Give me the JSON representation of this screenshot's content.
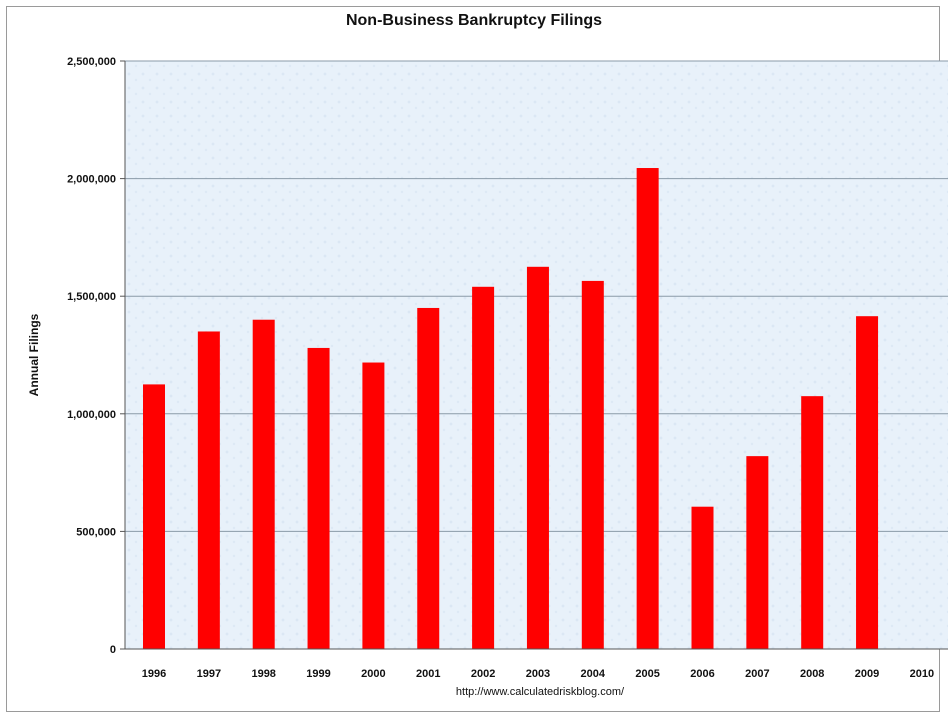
{
  "chart_data": {
    "type": "bar",
    "title": "Non-Business Bankruptcy Filings",
    "xlabel": "",
    "ylabel": "Annual Filings",
    "source": "http://www.calculatedriskblog.com/",
    "categories": [
      "1996",
      "1997",
      "1998",
      "1999",
      "2000",
      "2001",
      "2002",
      "2003",
      "2004",
      "2005",
      "2006",
      "2007",
      "2008",
      "2009",
      "2010"
    ],
    "values": [
      1125000,
      1350000,
      1400000,
      1280000,
      1218000,
      1450000,
      1540000,
      1625000,
      1565000,
      2045000,
      605000,
      820000,
      1075000,
      1415000,
      null
    ],
    "ylim": [
      0,
      2500000
    ],
    "yticks": [
      0,
      500000,
      1000000,
      1500000,
      2000000,
      2500000
    ],
    "ytick_labels": [
      "0",
      "500,000",
      "1,000,000",
      "1,500,000",
      "2,000,000",
      "2,500,000"
    ],
    "grid": true,
    "legend": "none",
    "bar_color": "#ff0000",
    "plot_background": "#e8f1fa"
  }
}
